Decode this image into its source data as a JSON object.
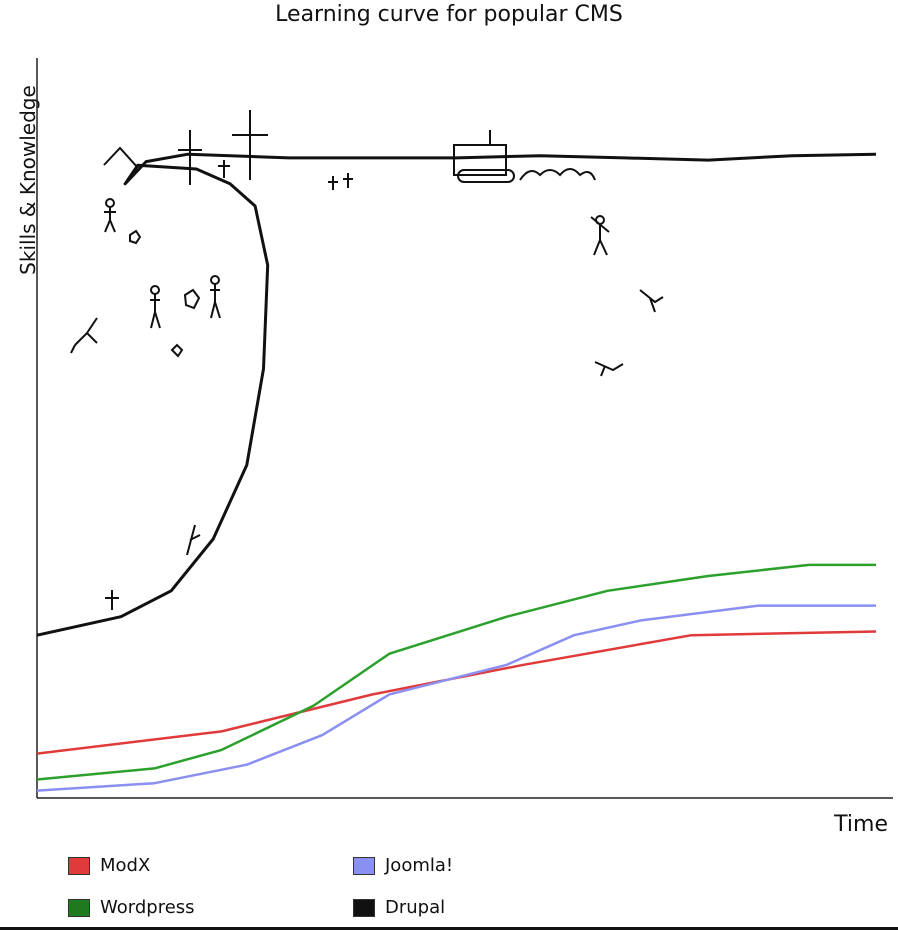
{
  "chart_data": {
    "type": "line",
    "title": "Learning curve for popular CMS",
    "xlabel": "Time",
    "ylabel": "Skills & Knowledge",
    "xlim": [
      0,
      100
    ],
    "ylim": [
      0,
      100
    ],
    "grid": false,
    "legend_position": "bottom",
    "series": [
      {
        "name": "ModX",
        "color": "#e03a3a",
        "x": [
          0,
          22,
          40,
          58,
          78,
          100
        ],
        "y": [
          6,
          9,
          14,
          18,
          22,
          22.5
        ]
      },
      {
        "name": "Joomla!",
        "color": "#8a8ff2",
        "x": [
          0,
          14,
          25,
          34,
          42,
          56,
          64,
          72,
          86,
          100
        ],
        "y": [
          1,
          2,
          4.5,
          8.5,
          14,
          18,
          22,
          24,
          26,
          26
        ]
      },
      {
        "name": "Wordpress",
        "color": "#2ca02c",
        "x": [
          0,
          14,
          22,
          33,
          42,
          56,
          68,
          80,
          92,
          100
        ],
        "y": [
          2.5,
          4,
          6.5,
          12.5,
          19.5,
          24.5,
          28,
          30,
          31.5,
          31.5
        ]
      },
      {
        "name": "Drupal",
        "color": "#111111",
        "x": [
          0,
          10,
          16,
          21,
          25,
          27,
          27.5,
          26,
          23,
          19,
          12,
          10.5,
          13,
          18,
          30,
          40,
          50,
          60,
          70,
          80,
          90,
          100
        ],
        "y": [
          22,
          24.5,
          28,
          35,
          45,
          58,
          72,
          80,
          83,
          85,
          85.5,
          83,
          86,
          87,
          86.5,
          86.5,
          86.5,
          86.8,
          86.5,
          86.2,
          86.8,
          87
        ]
      }
    ]
  }
}
